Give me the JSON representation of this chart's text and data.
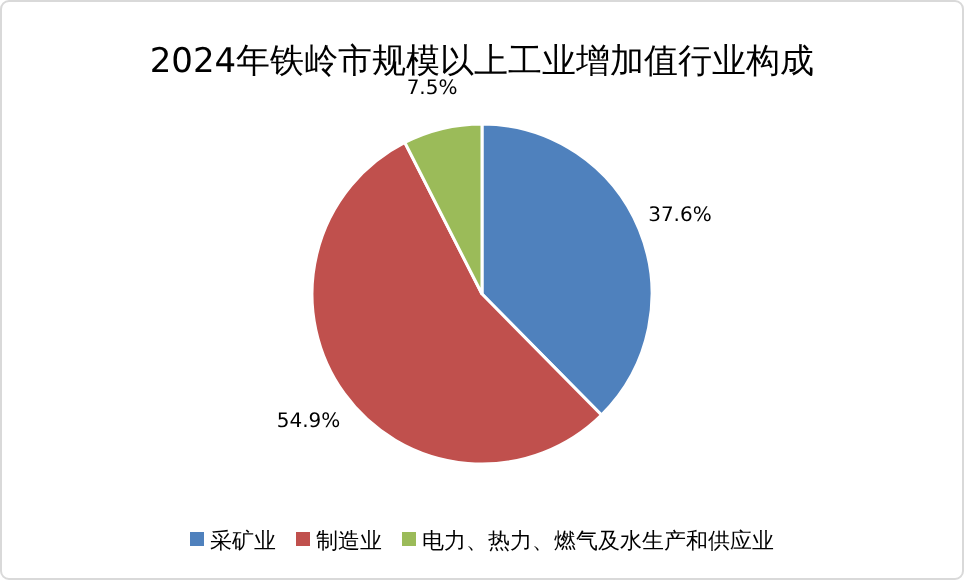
{
  "chart_data": {
    "type": "pie",
    "title": "2024年铁岭市规模以上工业增加值行业构成",
    "categories": [
      "采矿业",
      "制造业",
      "电力、热力、燃气及水生产和供应业"
    ],
    "values": [
      37.6,
      54.9,
      7.5
    ],
    "colors": [
      "#4f81bd",
      "#c0504d",
      "#9bbb59"
    ],
    "value_labels": [
      "37.6%",
      "54.9%",
      "7.5%"
    ],
    "legend": "bottom"
  }
}
